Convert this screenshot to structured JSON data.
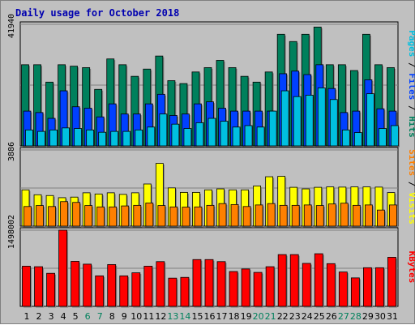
{
  "chart_data": {
    "title": "Daily usage for October 2018",
    "type": "bar",
    "x": [
      "1",
      "2",
      "3",
      "4",
      "5",
      "6",
      "7",
      "8",
      "9",
      "10",
      "11",
      "12",
      "13",
      "14",
      "15",
      "16",
      "17",
      "18",
      "19",
      "20",
      "21",
      "22",
      "23",
      "24",
      "25",
      "26",
      "27",
      "28",
      "29",
      "30",
      "31"
    ],
    "weekend_days": [
      "6",
      "7",
      "13",
      "14",
      "20",
      "21",
      "27",
      "28"
    ],
    "panels": [
      {
        "name": "hits-files-pages",
        "ymax_label": "41940",
        "ymax": 41940,
        "legend": [
          {
            "text": "Pages",
            "color": "#00c0e0"
          },
          {
            "text": " / ",
            "color": "#000000"
          },
          {
            "text": "Files",
            "color": "#0040ff"
          },
          {
            "text": " / ",
            "color": "#000000"
          },
          {
            "text": "Hits",
            "color": "#00805c"
          }
        ],
        "series": [
          {
            "name": "Hits",
            "color": "#00805c",
            "values": [
              28000,
              28000,
              22000,
              28000,
              27500,
              27000,
              19500,
              30000,
              28000,
              24000,
              26500,
              31000,
              22500,
              21500,
              25500,
              27000,
              29500,
              27000,
              24000,
              22000,
              25500,
              38500,
              36000,
              38500,
              41000,
              28000,
              28000,
              26000,
              38500,
              28000,
              27000
            ]
          },
          {
            "name": "Files",
            "color": "#0040ff",
            "values": [
              12000,
              11500,
              9500,
              19000,
              13500,
              13000,
              10000,
              14500,
              11000,
              11000,
              14500,
              17800,
              10500,
              11000,
              14500,
              15200,
              13000,
              12000,
              12000,
              12000,
              12000,
              24900,
              25800,
              24600,
              28000,
              19800,
              11500,
              12000,
              22800,
              12800,
              12000
            ]
          },
          {
            "name": "Pages",
            "color": "#00c0e0",
            "values": [
              5500,
              5000,
              5500,
              6200,
              6000,
              5500,
              4700,
              5000,
              5000,
              5500,
              6500,
              11000,
              7500,
              6000,
              8000,
              9500,
              8500,
              6500,
              7000,
              6500,
              12000,
              19000,
              17000,
              17500,
              20000,
              16000,
              5500,
              4600,
              18000,
              6000,
              7000
            ]
          }
        ]
      },
      {
        "name": "visits-sites",
        "ymax_label": "3886",
        "ymax": 3886,
        "legend": [
          {
            "text": "Sites",
            "color": "#ff8000"
          },
          {
            "text": " / ",
            "color": "#000000"
          },
          {
            "text": "Visits",
            "color": "#ffff00"
          }
        ],
        "series": [
          {
            "name": "Visits",
            "color": "#ffff00",
            "values": [
              1850,
              1600,
              1560,
              1450,
              1480,
              1700,
              1640,
              1700,
              1620,
              1700,
              2150,
              3200,
              1950,
              1720,
              1720,
              1850,
              1900,
              1850,
              1850,
              2050,
              2520,
              2540,
              1980,
              1900,
              1980,
              2000,
              1990,
              2000,
              2000,
              1990,
              1710
            ]
          },
          {
            "name": "Sites",
            "color": "#ff8000",
            "values": [
              1000,
              1050,
              1000,
              1250,
              1210,
              1050,
              980,
              980,
              1030,
              1060,
              1180,
              1050,
              980,
              970,
              980,
              1060,
              1150,
              1100,
              1000,
              1080,
              1150,
              1060,
              1060,
              1080,
              1050,
              1130,
              1170,
              1060,
              1080,
              820,
              1080
            ]
          }
        ]
      },
      {
        "name": "kbytes",
        "ymax_label": "1498002",
        "ymax": 1498002,
        "legend": [
          {
            "text": "KBytes",
            "color": "#ff0000"
          }
        ],
        "series": [
          {
            "name": "KBytes",
            "color": "#ff0000",
            "values": [
              790000,
              780000,
              650000,
              1498000,
              885000,
              830000,
              600000,
              822000,
              600000,
              660000,
              790000,
              880000,
              555000,
              570000,
              920000,
              920000,
              880000,
              685000,
              735000,
              668000,
              780000,
              1018000,
              1018000,
              845000,
              1035000,
              840000,
              676000,
              560000,
              760000,
              760000,
              965000
            ]
          }
        ]
      }
    ]
  }
}
